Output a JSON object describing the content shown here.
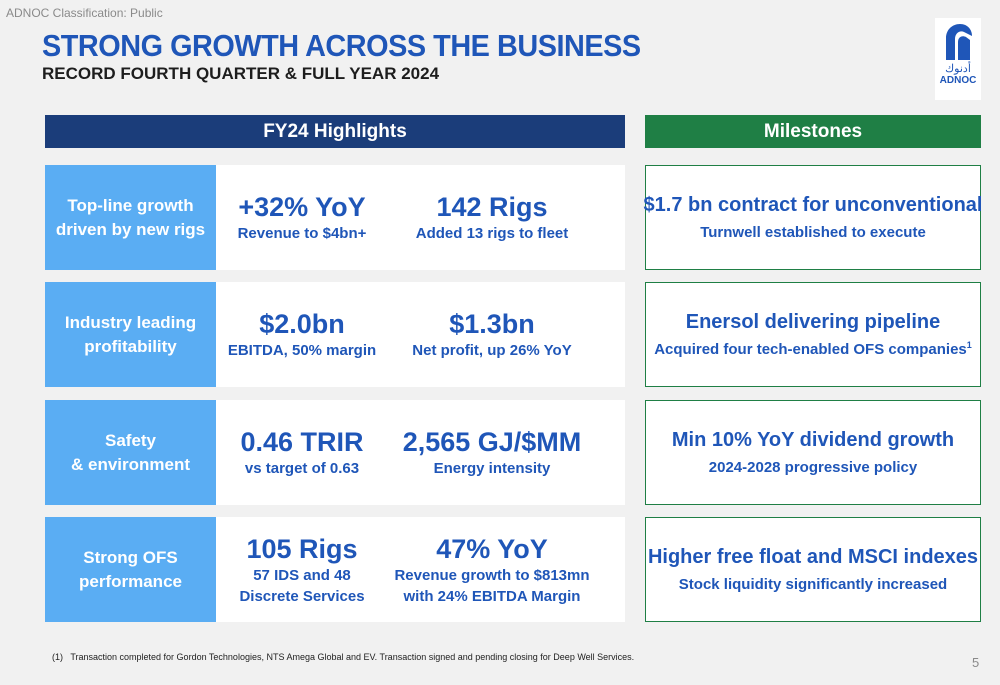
{
  "classification": "ADNOC Classification: Public",
  "title": "STRONG GROWTH ACROSS THE BUSINESS",
  "subtitle": "RECORD FOURTH QUARTER & FULL YEAR 2024",
  "logo": {
    "arabic_text": "أدنوك",
    "english_text": "ADNOC",
    "icon": "falcon-logo-icon"
  },
  "headers": {
    "highlights": "FY24 Highlights",
    "milestones": "Milestones"
  },
  "rows": [
    {
      "label": "Top-line growth\ndriven by new rigs",
      "metrics": [
        {
          "value": "+32% YoY",
          "desc": "Revenue to $4bn+"
        },
        {
          "value": "142 Rigs",
          "desc": "Added 13 rigs to fleet"
        }
      ],
      "milestone": {
        "title": "$1.7 bn contract for unconventional",
        "desc": "Turnwell established to execute",
        "sup": ""
      }
    },
    {
      "label": "Industry leading\nprofitability",
      "metrics": [
        {
          "value": "$2.0bn",
          "desc": "EBITDA, 50% margin"
        },
        {
          "value": "$1.3bn",
          "desc": "Net profit, up 26% YoY"
        }
      ],
      "milestone": {
        "title": "Enersol delivering pipeline",
        "desc": "Acquired four tech-enabled OFS companies",
        "sup": "1"
      }
    },
    {
      "label": "Safety\n& environment",
      "metrics": [
        {
          "value": "0.46 TRIR",
          "desc": "vs target of 0.63"
        },
        {
          "value": "2,565 GJ/$MM",
          "desc": "Energy intensity"
        }
      ],
      "milestone": {
        "title": "Min 10% YoY dividend growth",
        "desc": "2024-2028 progressive policy",
        "sup": ""
      }
    },
    {
      "label": "Strong OFS\nperformance",
      "metrics": [
        {
          "value": "105 Rigs",
          "desc": "57 IDS and 48\nDiscrete Services"
        },
        {
          "value": "47% YoY",
          "desc": "Revenue growth to $813mn\nwith 24% EBITDA Margin"
        }
      ],
      "milestone": {
        "title": "Higher free float and MSCI indexes",
        "desc": "Stock liquidity significantly increased",
        "sup": ""
      }
    }
  ],
  "footnote": {
    "number": "(1)",
    "text": "Transaction completed for Gordon Technologies, NTS Amega Global and EV. Transaction signed and pending closing for Deep Well Services."
  },
  "page_number": "5",
  "colors": {
    "title_blue": "#1f56b8",
    "highlights_header": "#1b3d7a",
    "milestones_header": "#1f7f45",
    "row_label_bg": "#5aadf3"
  }
}
